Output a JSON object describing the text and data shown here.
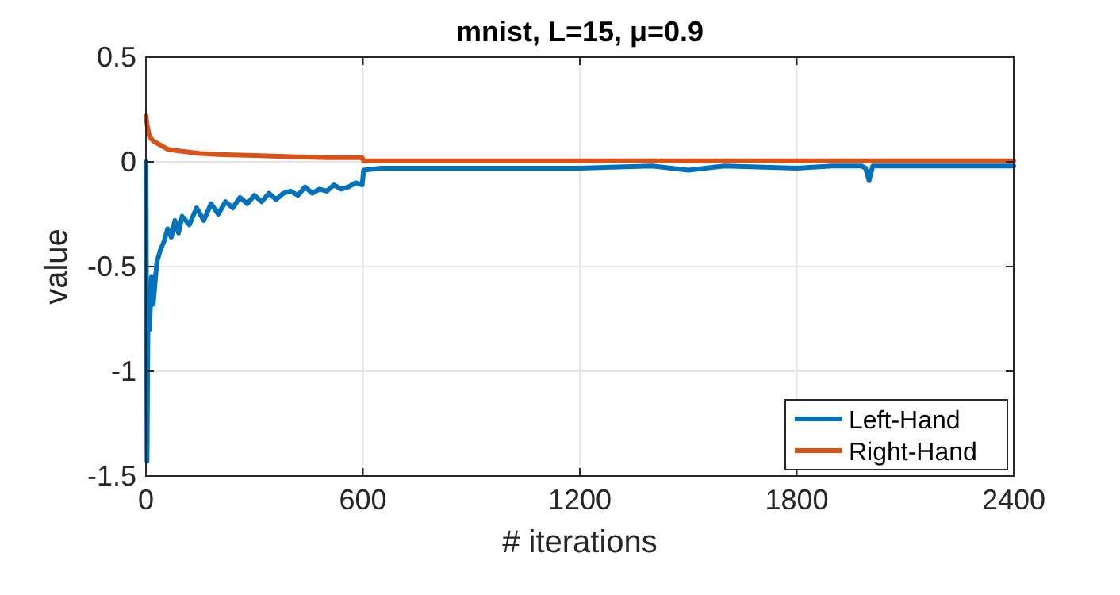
{
  "chart_data": {
    "type": "line",
    "title": "mnist, L=15, μ=0.9",
    "xlabel": "# iterations",
    "ylabel": "value",
    "xlim": [
      0,
      2400
    ],
    "xticks": [
      0,
      600,
      1200,
      1800,
      2400
    ],
    "ylim": [
      -1.5,
      0.5
    ],
    "yticks": [
      -1.5,
      -1,
      -0.5,
      0,
      0.5
    ],
    "grid": true,
    "legend": "bottom right",
    "series": [
      {
        "name": "Left-Hand",
        "color": "#0072bd",
        "x": [
          0,
          3,
          6,
          10,
          15,
          20,
          25,
          30,
          40,
          50,
          60,
          70,
          80,
          90,
          100,
          120,
          140,
          160,
          180,
          200,
          220,
          240,
          260,
          280,
          300,
          320,
          340,
          360,
          380,
          400,
          420,
          440,
          460,
          480,
          500,
          520,
          540,
          560,
          580,
          598,
          602,
          650,
          800,
          1000,
          1200,
          1400,
          1500,
          1600,
          1800,
          1900,
          1980,
          1990,
          2000,
          2010,
          2100,
          2200,
          2400
        ],
        "values": [
          0,
          -1.43,
          -0.62,
          -0.8,
          -0.55,
          -0.68,
          -0.58,
          -0.48,
          -0.42,
          -0.38,
          -0.32,
          -0.36,
          -0.28,
          -0.34,
          -0.26,
          -0.3,
          -0.22,
          -0.28,
          -0.2,
          -0.25,
          -0.19,
          -0.22,
          -0.17,
          -0.2,
          -0.16,
          -0.19,
          -0.15,
          -0.18,
          -0.15,
          -0.14,
          -0.16,
          -0.12,
          -0.15,
          -0.13,
          -0.14,
          -0.11,
          -0.13,
          -0.12,
          -0.1,
          -0.11,
          -0.04,
          -0.03,
          -0.03,
          -0.03,
          -0.03,
          -0.02,
          -0.04,
          -0.02,
          -0.03,
          -0.02,
          -0.02,
          -0.03,
          -0.09,
          -0.02,
          -0.02,
          -0.02,
          -0.02
        ]
      },
      {
        "name": "Right-Hand",
        "color": "#d95319",
        "x": [
          0,
          3,
          6,
          10,
          20,
          40,
          60,
          100,
          150,
          200,
          300,
          400,
          500,
          598,
          602,
          1000,
          2400
        ],
        "values": [
          0.22,
          0.18,
          0.15,
          0.12,
          0.1,
          0.08,
          0.06,
          0.05,
          0.04,
          0.035,
          0.03,
          0.025,
          0.02,
          0.02,
          0.005,
          0.005,
          0.005
        ]
      }
    ]
  }
}
